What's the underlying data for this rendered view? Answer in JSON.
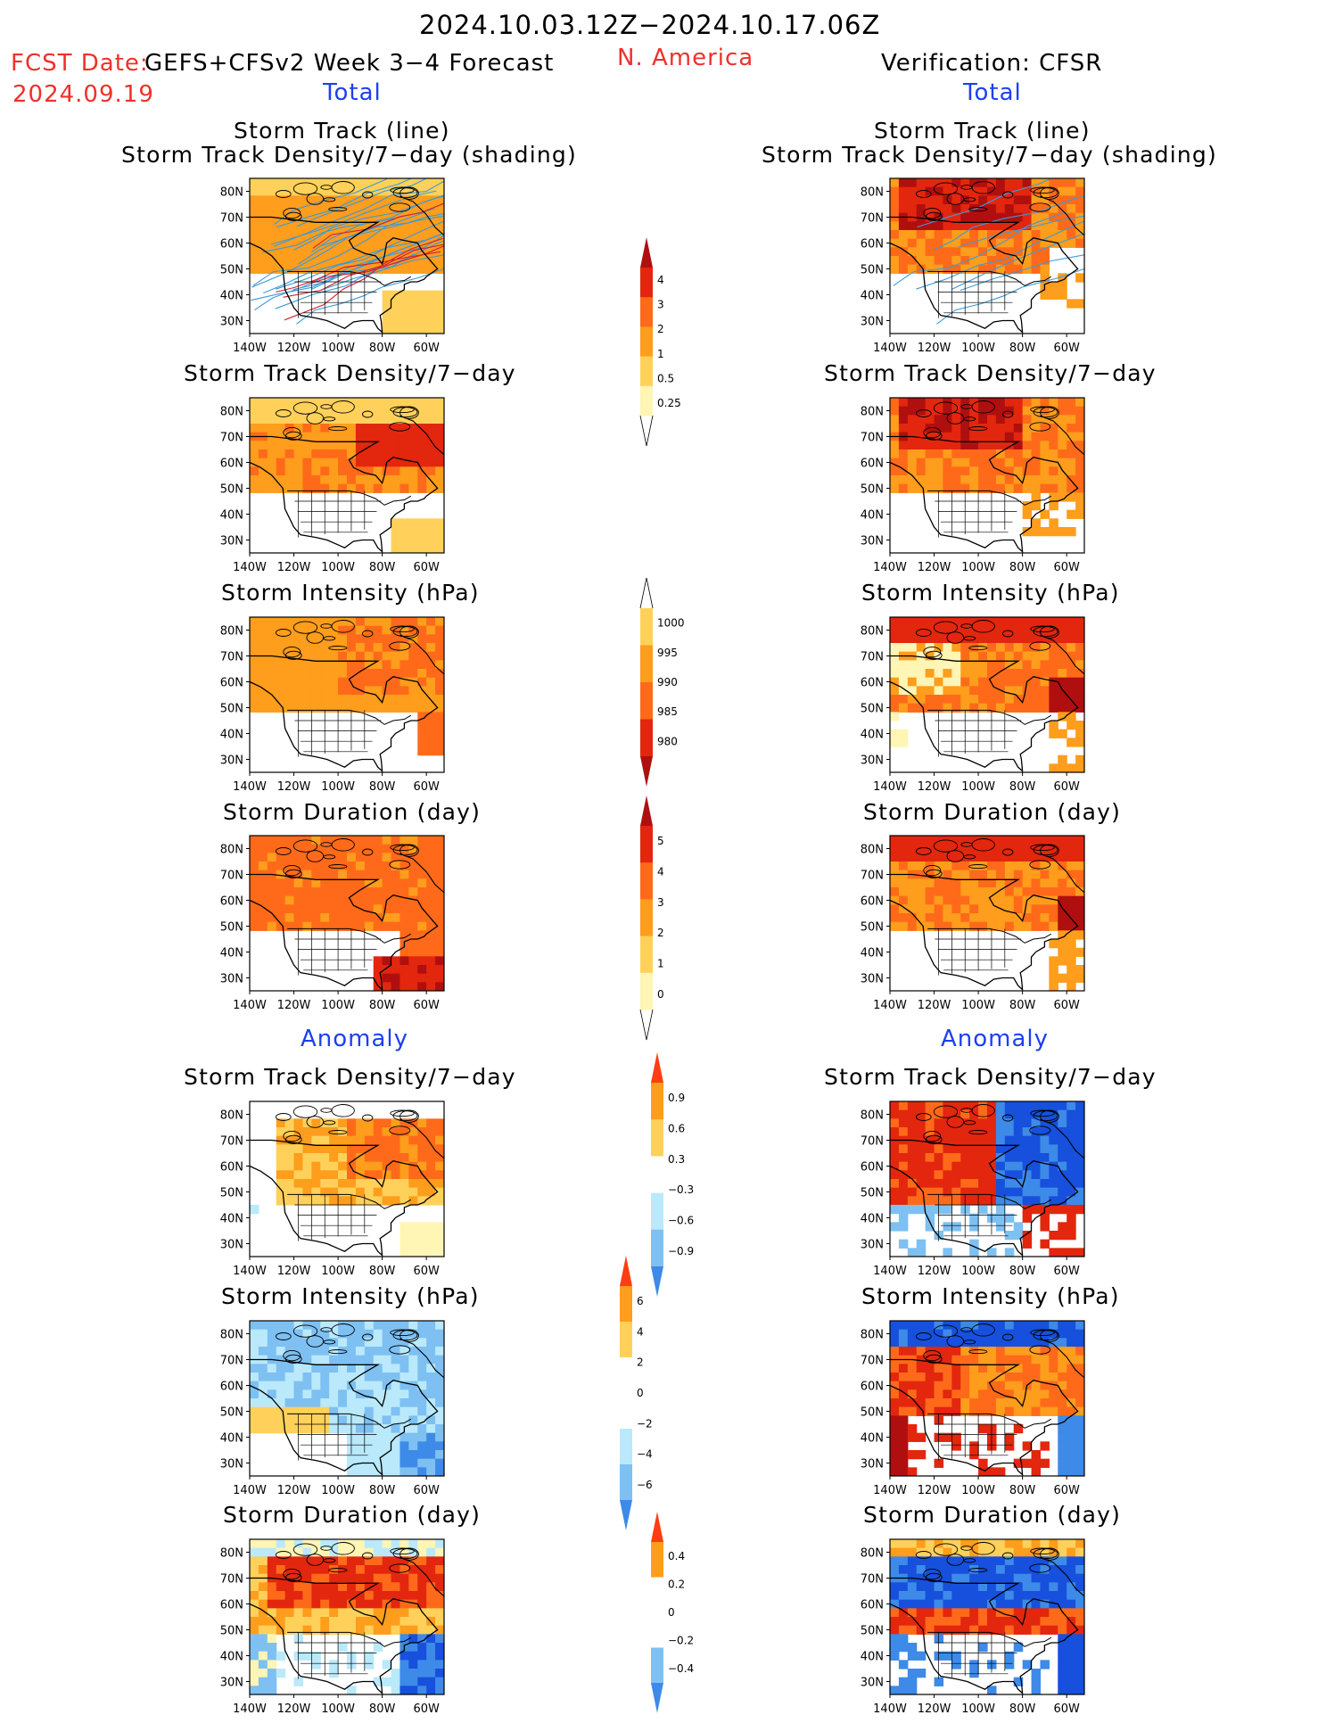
{
  "header": {
    "date_range": "2024.10.03.12Z−2024.10.17.06Z",
    "fcst_label": "FCST Date:",
    "model_label": "GEFS+CFSv2 Week 3−4 Forecast",
    "fcst_date": "2024.09.19",
    "region": "N. America",
    "verification": "Verification: CFSR"
  },
  "sections": {
    "total_left": "Total",
    "total_right": "Total",
    "anomaly_left": "Anomaly",
    "anomaly_right": "Anomaly"
  },
  "titles": {
    "track_line": "Storm Track (line)",
    "track_shading": "Storm Track Density/7−day (shading)",
    "density": "Storm Track Density/7−day",
    "intensity": "Storm Intensity (hPa)",
    "duration": "Storm Duration (day)"
  },
  "axes": {
    "lat_labels": [
      "80N",
      "70N",
      "60N",
      "50N",
      "40N",
      "30N"
    ],
    "lon_labels": [
      "140W",
      "120W",
      "100W",
      "80W",
      "60W"
    ]
  },
  "colorbars": {
    "density_total": [
      "4",
      "3",
      "2",
      "1",
      "0.5",
      "0.25"
    ],
    "intensity_total": [
      "1000",
      "995",
      "990",
      "985",
      "980"
    ],
    "duration_total": [
      "5",
      "4",
      "3",
      "2",
      "1",
      "0"
    ],
    "density_anom": [
      "0.9",
      "0.6",
      "0.3",
      "−0.3",
      "−0.6",
      "−0.9"
    ],
    "intensity_anom": [
      "6",
      "4",
      "2",
      "0",
      "−2",
      "−4",
      "−6"
    ],
    "duration_anom": [
      "0.4",
      "0.2",
      "0",
      "−0.2",
      "−0.4"
    ]
  },
  "palette": {
    "pale_yellow": "#fff5b4",
    "light_orange": "#ffd15a",
    "orange": "#ff9d1c",
    "dark_orange": "#ff6a1a",
    "red": "#e3260e",
    "dark_red": "#b00f0f",
    "light_cyan": "#b9e9fb",
    "light_blue": "#7ec0f2",
    "blue": "#3d8ae8",
    "dark_blue": "#1650dc",
    "track_line": "#3b9ad6",
    "track_line_red": "#d21e32"
  }
}
